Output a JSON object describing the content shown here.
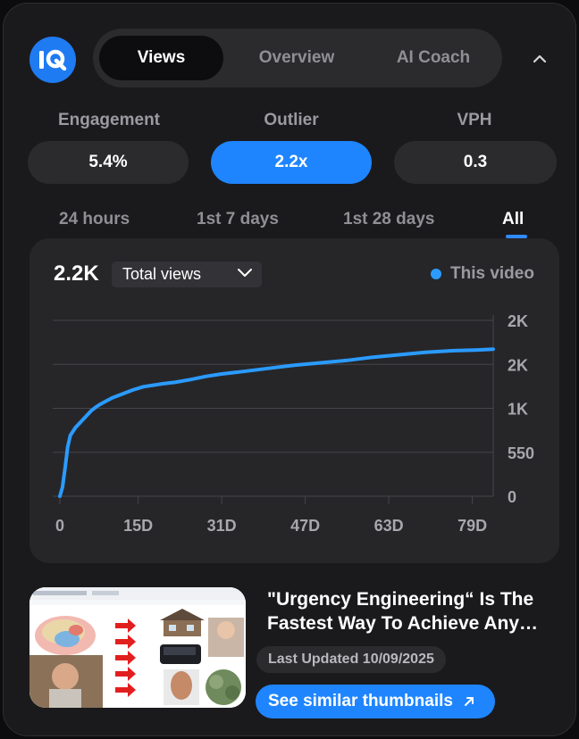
{
  "app": {
    "logo_text": "IQ",
    "accent": "#1f85ff"
  },
  "tabs": [
    {
      "label": "Views",
      "active": true
    },
    {
      "label": "Overview",
      "active": false
    },
    {
      "label": "AI Coach",
      "active": false
    }
  ],
  "metrics": [
    {
      "label": "Engagement",
      "value": "5.4%"
    },
    {
      "label": "Outlier",
      "value": "2.2x",
      "highlighted": true
    },
    {
      "label": "VPH",
      "value": "0.3"
    }
  ],
  "periods": [
    {
      "label": "24 hours"
    },
    {
      "label": "1st 7 days"
    },
    {
      "label": "1st 28 days"
    },
    {
      "label": "All",
      "active": true
    }
  ],
  "chart": {
    "total": "2.2K",
    "metric_selected": "Total views",
    "legend": "This video"
  },
  "chart_data": {
    "type": "line",
    "x_tick_labels": [
      "0",
      "15D",
      "31D",
      "47D",
      "63D",
      "79D"
    ],
    "x_ticks": [
      0,
      15,
      31,
      47,
      63,
      79
    ],
    "y_tick_labels": [
      "0",
      "550",
      "1K",
      "2K",
      "2K"
    ],
    "y_ticks": [
      0,
      550,
      1100,
      1650,
      2200
    ],
    "xlim": [
      0,
      83
    ],
    "ylim": [
      0,
      2200
    ],
    "grid": true,
    "legend_position": "top-right",
    "series": [
      {
        "name": "This video",
        "color": "#2b9bff",
        "x": [
          0,
          0.5,
          1,
          1.5,
          2,
          3,
          4,
          5,
          6,
          7,
          8,
          10,
          12,
          14,
          16,
          18,
          20,
          22,
          25,
          28,
          31,
          35,
          40,
          45,
          50,
          55,
          60,
          65,
          70,
          75,
          80,
          83
        ],
        "y": [
          0,
          110,
          350,
          620,
          760,
          860,
          930,
          1000,
          1070,
          1120,
          1160,
          1230,
          1280,
          1330,
          1370,
          1390,
          1410,
          1425,
          1460,
          1500,
          1530,
          1560,
          1600,
          1640,
          1670,
          1700,
          1740,
          1770,
          1800,
          1820,
          1830,
          1840
        ]
      }
    ]
  },
  "video": {
    "title": "\"Urgency Engineering“ Is The Fastest Way To Achieve Any…",
    "last_updated": "Last Updated 10/09/2025",
    "similar_button": "See similar thumbnails"
  }
}
